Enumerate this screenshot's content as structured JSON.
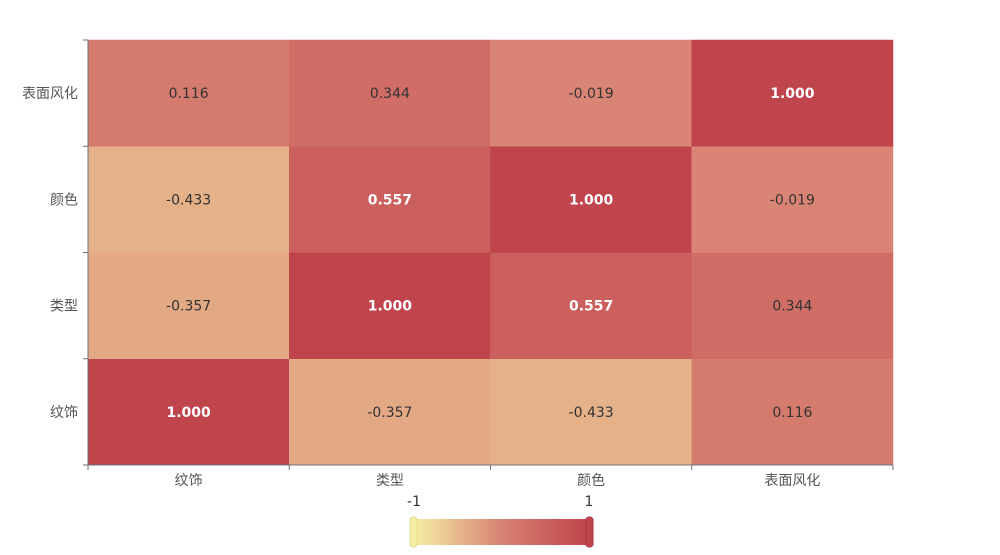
{
  "chart_data": {
    "type": "heatmap",
    "x_categories": [
      "纹饰",
      "类型",
      "颜色",
      "表面风化"
    ],
    "y_categories": [
      "纹饰",
      "类型",
      "颜色",
      "表面风化"
    ],
    "values": [
      [
        1.0,
        -0.357,
        -0.433,
        0.116
      ],
      [
        -0.357,
        1.0,
        0.557,
        0.344
      ],
      [
        -0.433,
        0.557,
        1.0,
        -0.019
      ],
      [
        0.116,
        0.344,
        -0.019,
        1.0
      ]
    ],
    "value_labels": [
      [
        "1.000",
        "-0.357",
        "-0.433",
        "0.116"
      ],
      [
        "-0.357",
        "1.000",
        "0.557",
        "0.344"
      ],
      [
        "-0.433",
        "0.557",
        "1.000",
        "-0.019"
      ],
      [
        "0.116",
        "0.344",
        "-0.019",
        "1.000"
      ]
    ],
    "visual_map": {
      "min": -1,
      "max": 1,
      "min_label": "-1",
      "max_label": "1",
      "colors": [
        "#f6efa6",
        "#d88273",
        "#bf444c"
      ]
    },
    "legend_position": "bottom-center",
    "title": "",
    "xlabel": "",
    "ylabel": ""
  }
}
